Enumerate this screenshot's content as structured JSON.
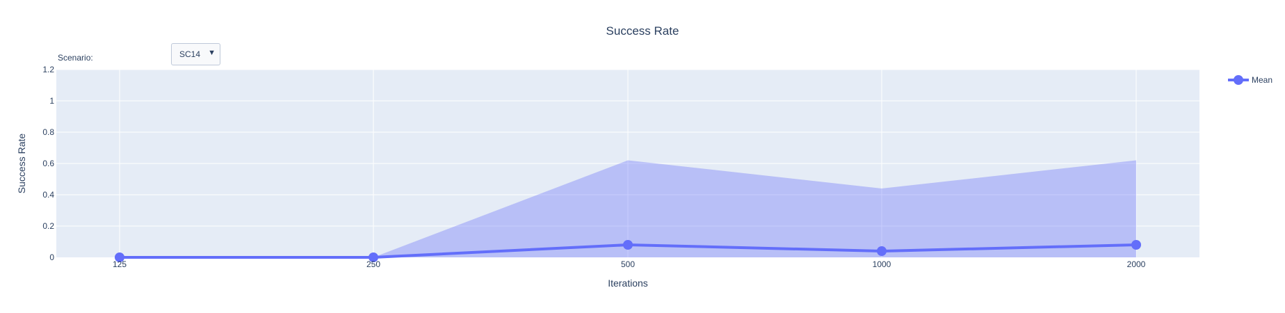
{
  "scenario": {
    "label": "Scenario:",
    "selected": "SC14"
  },
  "colors": {
    "plot_bg": "#e5ecf6",
    "grid": "#ffffff",
    "line": "#636efa",
    "band": "rgba(99,110,250,0.35)",
    "text": "#2a3f5f"
  },
  "chart_data": {
    "type": "line",
    "title": "Success Rate",
    "xlabel": "Iterations",
    "ylabel": "Success Rate",
    "categories": [
      "125",
      "250",
      "500",
      "1000",
      "2000"
    ],
    "ylim": [
      0,
      1.2
    ],
    "yticks": [
      "0",
      "0.2",
      "0.4",
      "0.6",
      "0.8",
      "1",
      "1.2"
    ],
    "grid": true,
    "legend_position": "top-right",
    "series": [
      {
        "name": "Mean",
        "values": [
          0,
          0,
          0.08,
          0.04,
          0.08
        ],
        "band_lower": [
          0,
          0,
          0,
          0,
          0
        ],
        "band_upper": [
          0,
          0,
          0.62,
          0.44,
          0.62
        ]
      }
    ]
  }
}
